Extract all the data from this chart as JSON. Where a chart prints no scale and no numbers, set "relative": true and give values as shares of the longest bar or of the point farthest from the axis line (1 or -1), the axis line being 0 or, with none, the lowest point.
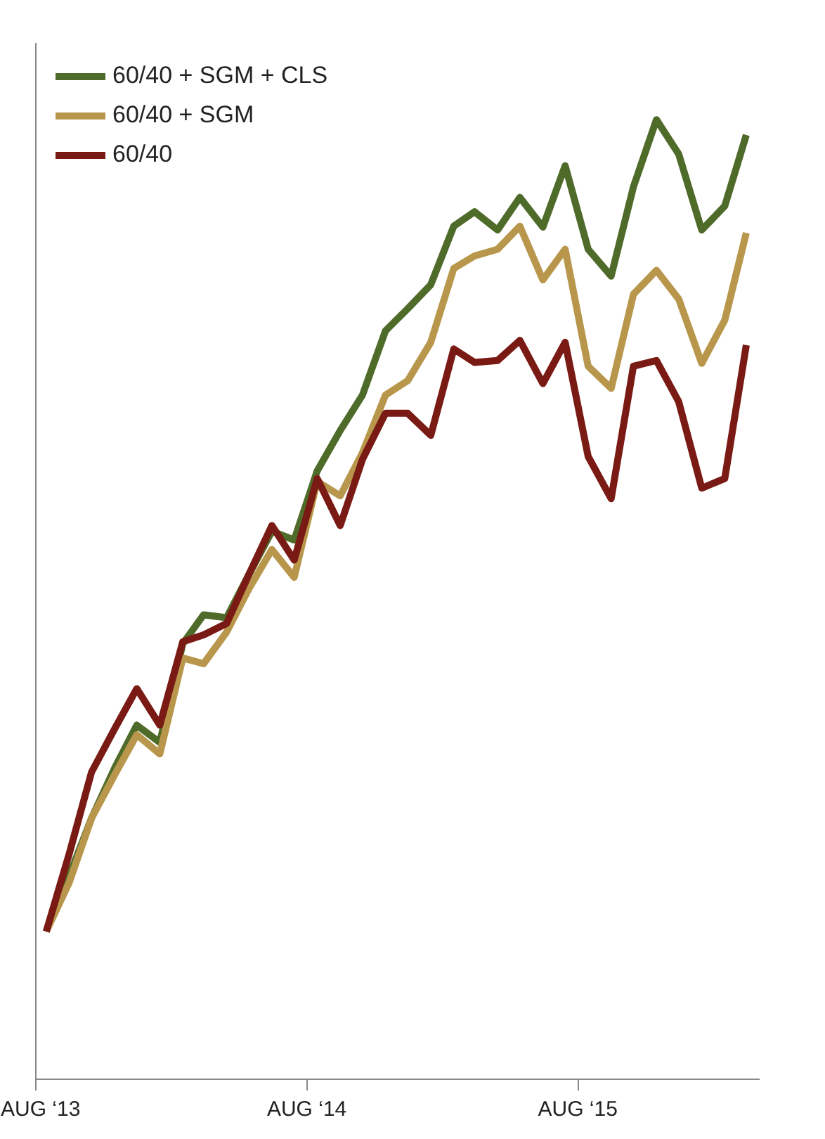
{
  "chart_data": {
    "type": "line",
    "relative": true,
    "legend": "top left",
    "grid": false,
    "line_style": "solid",
    "marker": "none",
    "x": [
      "2013-08-15",
      "2013-09-15",
      "2013-10-15",
      "2013-11-15",
      "2013-12-15",
      "2014-01-15",
      "2014-02-15",
      "2014-03-15",
      "2014-04-15",
      "2014-05-15",
      "2014-06-15",
      "2014-07-15",
      "2014-08-15",
      "2014-09-15",
      "2014-10-15",
      "2014-11-15",
      "2014-12-15",
      "2015-01-15",
      "2015-02-15",
      "2015-03-15",
      "2015-04-15",
      "2015-05-15",
      "2015-06-15",
      "2015-07-15",
      "2015-08-15",
      "2015-09-15",
      "2015-10-15",
      "2015-11-15",
      "2015-12-15",
      "2016-01-15",
      "2016-02-15",
      "2016-03-15"
    ],
    "xlim": [
      "2013-08-01",
      "2016-04-02"
    ],
    "xticks": [
      {
        "value": "2013-08-01",
        "label": "AUG ‘13"
      },
      {
        "value": "2014-08-01",
        "label": "AUG ‘14"
      },
      {
        "value": "2015-08-01",
        "label": "AUG ‘15"
      }
    ],
    "series": [
      {
        "name": "60/40 + SGM + CLS",
        "color": "#4f6b2a",
        "values": [
          0.154,
          0.212,
          0.272,
          0.324,
          0.369,
          0.351,
          0.454,
          0.484,
          0.481,
          0.526,
          0.571,
          0.562,
          0.634,
          0.676,
          0.713,
          0.78,
          0.803,
          0.828,
          0.889,
          0.904,
          0.885,
          0.919,
          0.888,
          0.952,
          0.865,
          0.837,
          0.93,
          1.0,
          0.964,
          0.885,
          0.91,
          0.984
        ]
      },
      {
        "name": "60/40 + SGM",
        "color": "#b8974c",
        "values": [
          0.154,
          0.205,
          0.272,
          0.317,
          0.359,
          0.339,
          0.439,
          0.433,
          0.466,
          0.511,
          0.552,
          0.523,
          0.623,
          0.608,
          0.653,
          0.713,
          0.728,
          0.768,
          0.845,
          0.858,
          0.865,
          0.889,
          0.833,
          0.865,
          0.743,
          0.72,
          0.818,
          0.843,
          0.813,
          0.746,
          0.791,
          0.882
        ]
      },
      {
        "name": "60/40",
        "color": "#7a1a14",
        "values": [
          0.154,
          0.235,
          0.32,
          0.365,
          0.407,
          0.369,
          0.456,
          0.463,
          0.475,
          0.526,
          0.577,
          0.541,
          0.626,
          0.577,
          0.646,
          0.694,
          0.694,
          0.671,
          0.761,
          0.747,
          0.749,
          0.77,
          0.725,
          0.768,
          0.649,
          0.605,
          0.743,
          0.749,
          0.706,
          0.616,
          0.626,
          0.765
        ]
      }
    ]
  }
}
